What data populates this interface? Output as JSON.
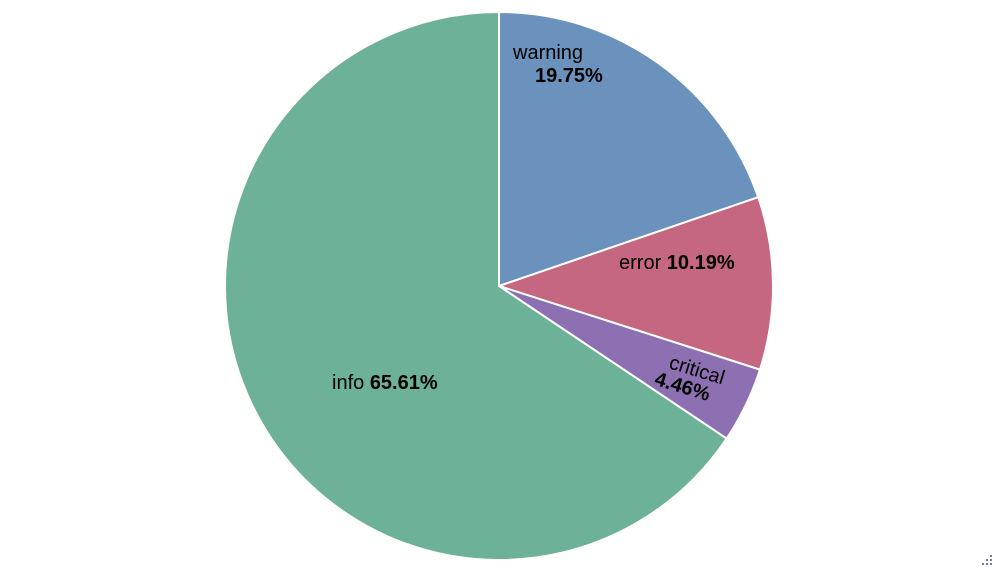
{
  "chart_data": {
    "type": "pie",
    "start_angle": "top",
    "direction": "clockwise",
    "slices": [
      {
        "label": "warning",
        "value": 19.75,
        "pct_label": "19.75%",
        "color": "#6a92bd"
      },
      {
        "label": "error",
        "value": 10.19,
        "pct_label": "10.19%",
        "color": "#c56781"
      },
      {
        "label": "critical",
        "value": 4.46,
        "pct_label": "4.46%",
        "color": "#8d70b1"
      },
      {
        "label": "info",
        "value": 65.61,
        "pct_label": "65.61%",
        "color": "#6db199"
      }
    ],
    "legend": "none"
  },
  "icons": {
    "resize": "resize-handle-icon"
  }
}
